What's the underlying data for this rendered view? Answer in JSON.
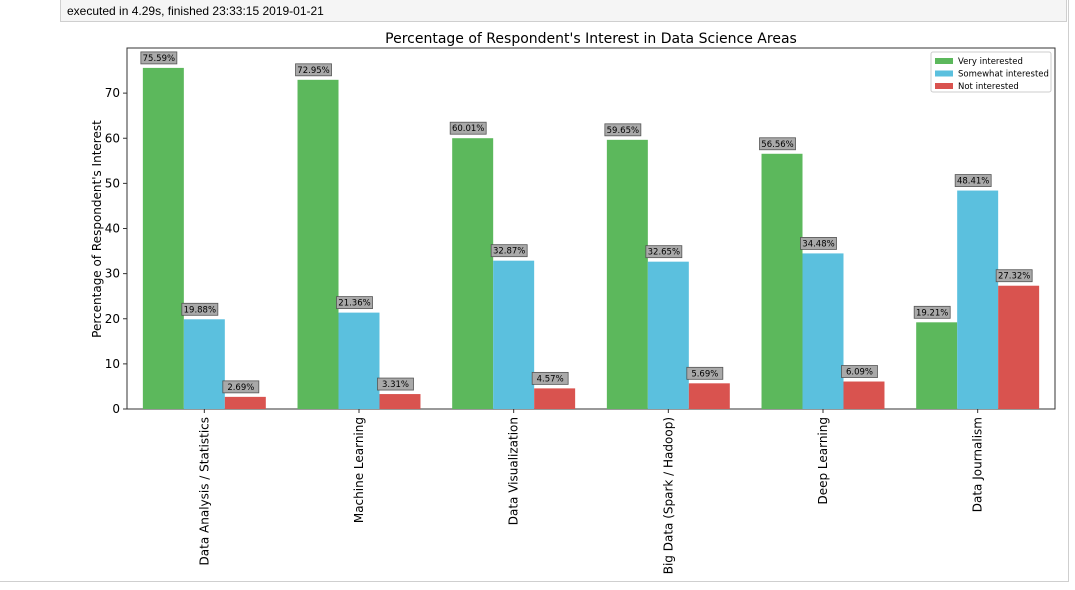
{
  "cell": {
    "exec_status": "executed in 4.29s, finished 23:33:15 2019-01-21"
  },
  "colors": {
    "very_interested": "#5cb85c",
    "somewhat_interested": "#5bc0de",
    "not_interested": "#d9534f",
    "label_box": "#a9a9a9"
  },
  "chart_data": {
    "type": "bar",
    "title": "Percentage of Respondent's Interest in Data Science Areas",
    "xlabel": "",
    "ylabel": "Percentage of Respondent's Interest",
    "ylim": [
      0,
      80
    ],
    "yticks": [
      "0",
      "10",
      "20",
      "30",
      "40",
      "50",
      "60",
      "70"
    ],
    "legend_position": "top-right",
    "grid": false,
    "categories": [
      "Data Analysis / Statistics",
      "Machine Learning",
      "Data Visualization",
      "Big Data (Spark / Hadoop)",
      "Deep Learning",
      "Data Journalism"
    ],
    "series": [
      {
        "name": "Very interested",
        "color": "#5cb85c",
        "values": [
          75.59,
          72.95,
          60.01,
          59.65,
          56.56,
          19.21
        ],
        "labels": [
          "75.59%",
          "72.95%",
          "60.01%",
          "59.65%",
          "56.56%",
          "19.21%"
        ]
      },
      {
        "name": "Somewhat interested",
        "color": "#5bc0de",
        "values": [
          19.88,
          21.36,
          32.87,
          32.65,
          34.48,
          48.41
        ],
        "labels": [
          "19.88%",
          "21.36%",
          "32.87%",
          "32.65%",
          "34.48%",
          "48.41%"
        ]
      },
      {
        "name": "Not interested",
        "color": "#d9534f",
        "values": [
          2.69,
          3.31,
          4.57,
          5.69,
          6.09,
          27.32
        ],
        "labels": [
          "2.69%",
          "3.31%",
          "4.57%",
          "5.69%",
          "6.09%",
          "27.32%"
        ]
      }
    ]
  }
}
